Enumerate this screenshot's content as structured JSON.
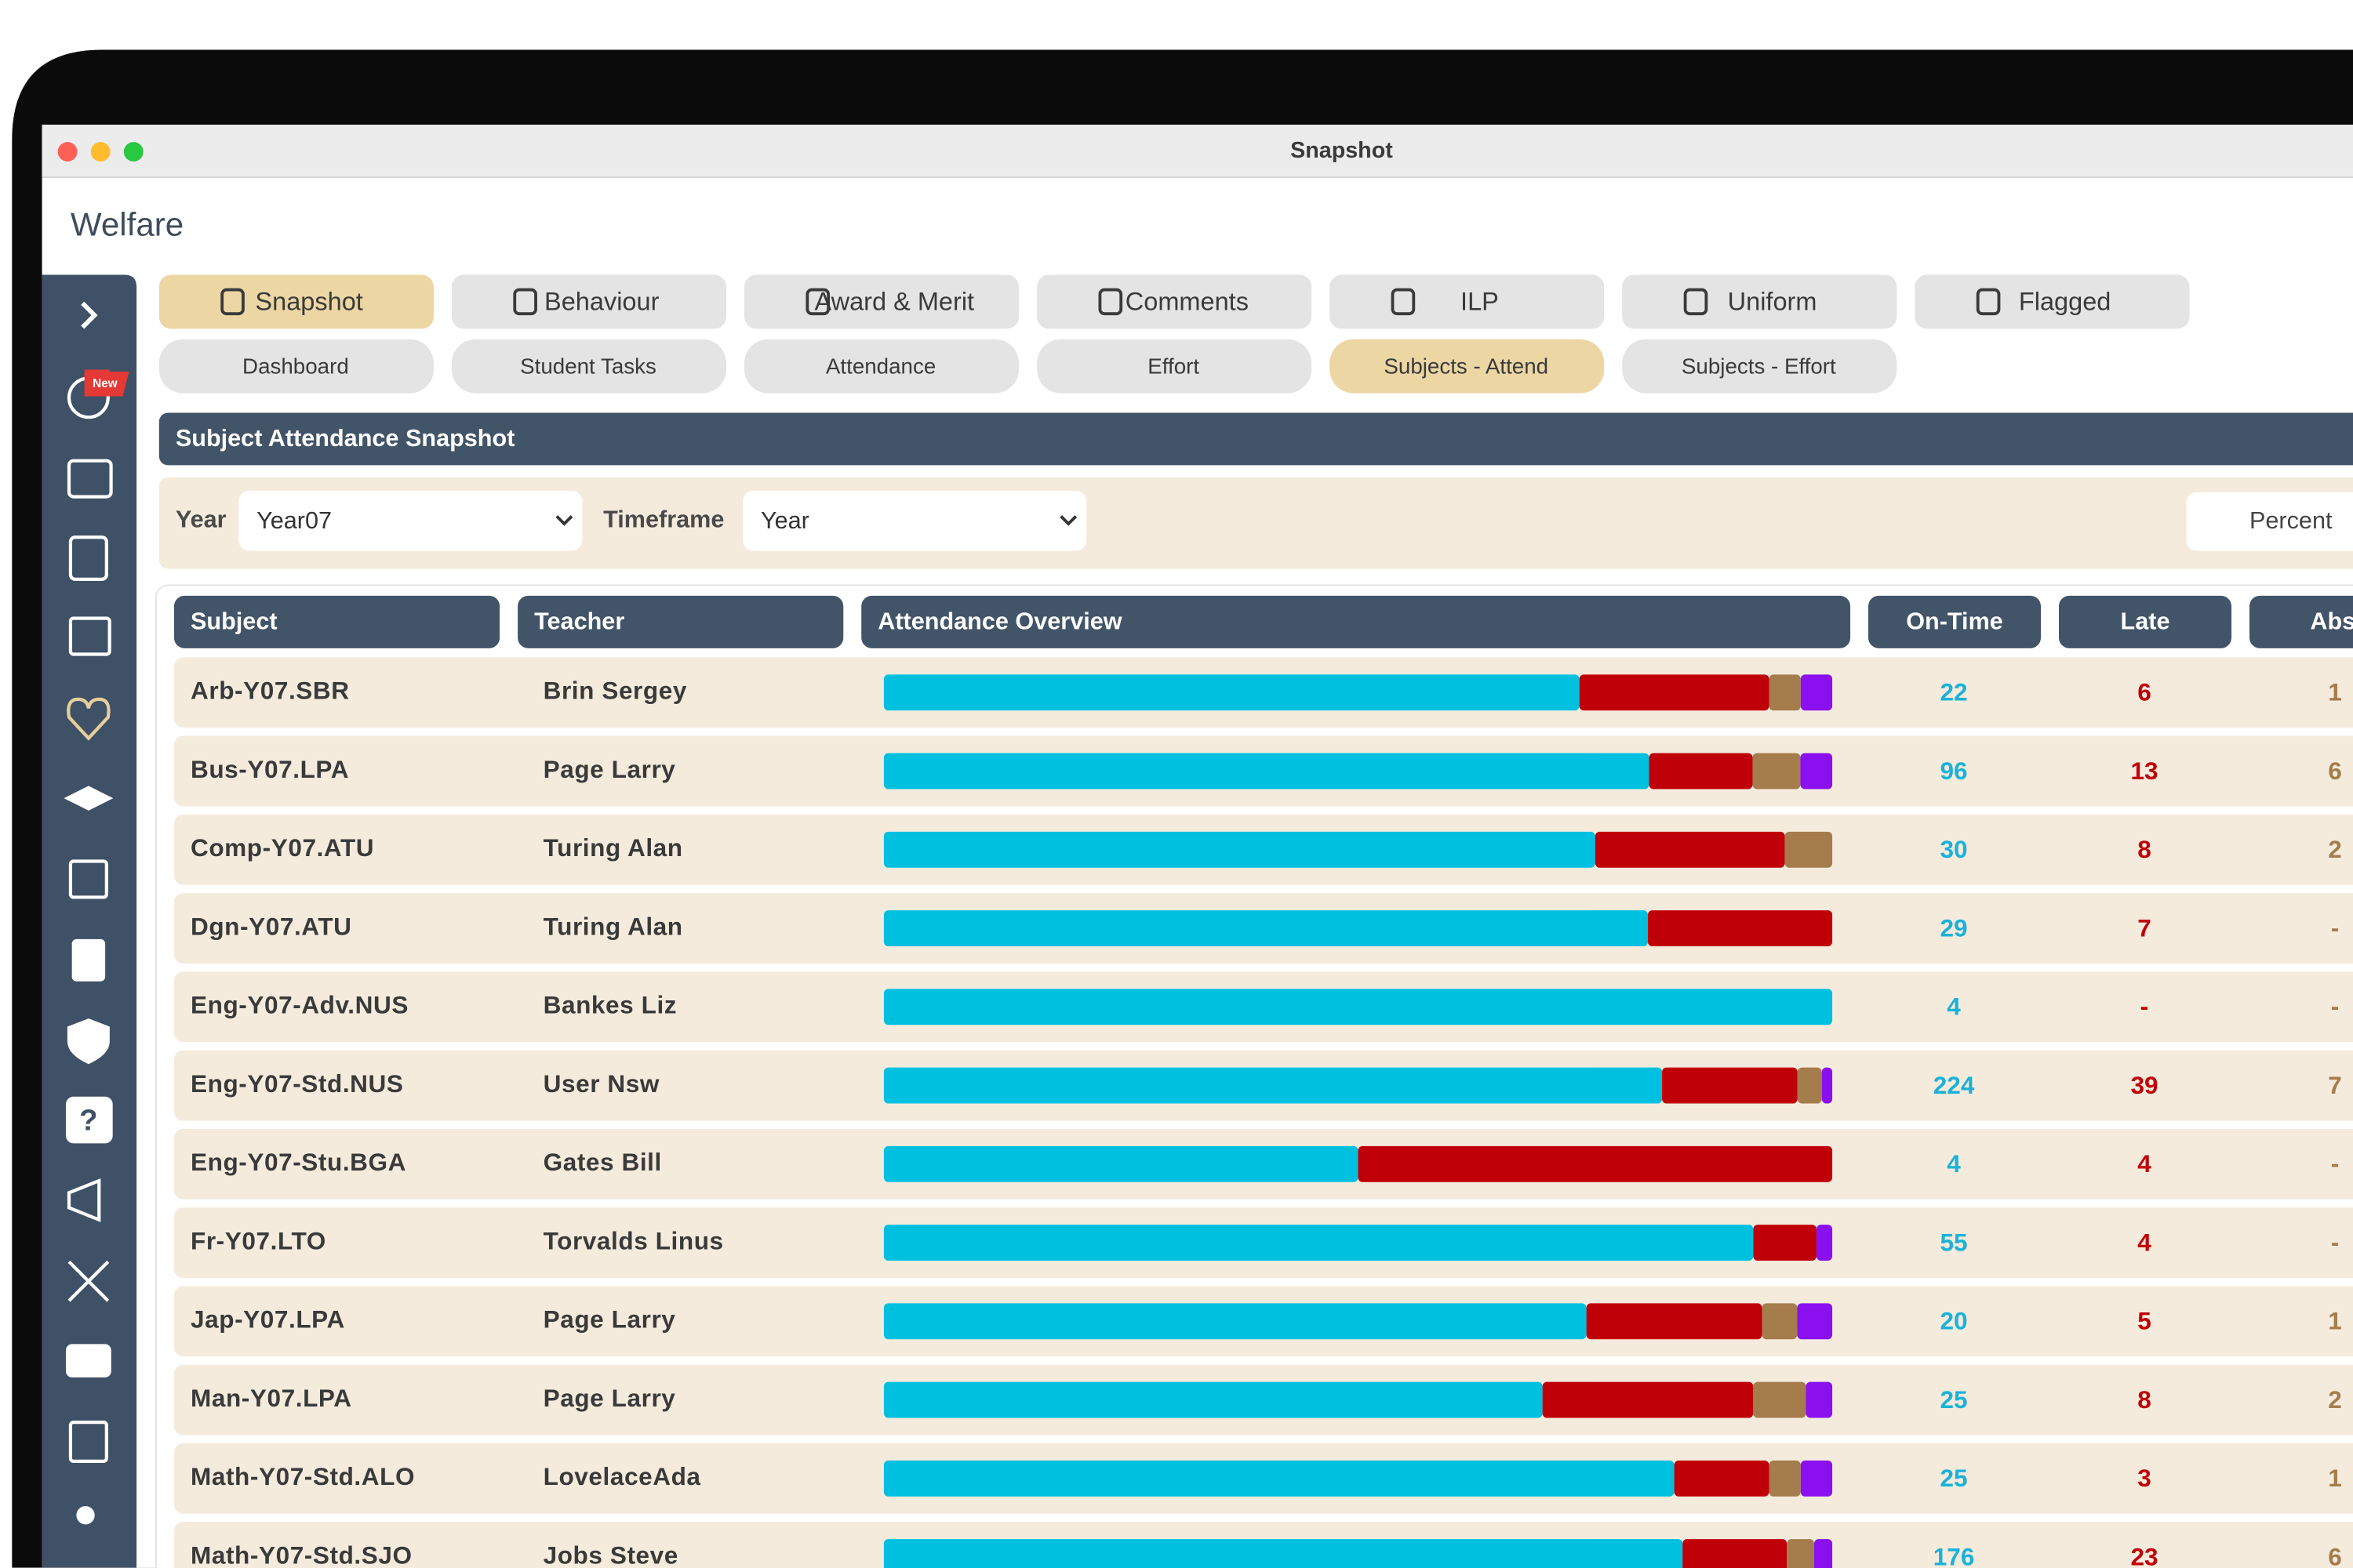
{
  "window": {
    "title": "Snapshot"
  },
  "header": {
    "title": "Welfare"
  },
  "sidebar": {
    "badge": "New"
  },
  "tabs": [
    "Snapshot",
    "Behaviour",
    "Award & Merit",
    "Comments",
    "ILP",
    "Uniform",
    "Flagged"
  ],
  "active_tab": 0,
  "subtabs": [
    "Dashboard",
    "Student Tasks",
    "Attendance",
    "Effort",
    "Subjects - Attend",
    "Subjects - Effort"
  ],
  "active_subtab": 4,
  "section": {
    "title": "Subject Attendance Snapshot"
  },
  "filters": {
    "year_label": "Year",
    "year": "Year07",
    "timeframe_label": "Timeframe",
    "timeframe": "Year",
    "mode": "Percent"
  },
  "table": {
    "columns": [
      "Subject",
      "Teacher",
      "Attendance Overview",
      "On-Time",
      "Late",
      "Abse"
    ],
    "colors": [
      "#00c0e0",
      "#c00008",
      "#a57c4c",
      "#8a10f0"
    ],
    "rows": [
      [
        "Arb-Y07.SBR",
        "Brin Sergey",
        22,
        6,
        1,
        1
      ],
      [
        "Bus-Y07.LPA",
        "Page Larry",
        96,
        13,
        6,
        4
      ],
      [
        "Comp-Y07.ATU",
        "Turing Alan",
        30,
        8,
        2,
        0
      ],
      [
        "Dgn-Y07.ATU",
        "Turing Alan",
        29,
        7,
        "-",
        0
      ],
      [
        "Eng-Y07-Adv.NUS",
        "Bankes Liz",
        4,
        "-",
        "-",
        0
      ],
      [
        "Eng-Y07-Std.NUS",
        "User Nsw",
        224,
        39,
        7,
        3
      ],
      [
        "Eng-Y07-Stu.BGA",
        "Gates Bill",
        4,
        4,
        "-",
        0
      ],
      [
        "Fr-Y07.LTO",
        "Torvalds Linus",
        55,
        4,
        "-",
        1
      ],
      [
        "Jap-Y07.LPA",
        "Page Larry",
        20,
        5,
        1,
        1
      ],
      [
        "Man-Y07.LPA",
        "Page Larry",
        25,
        8,
        2,
        1
      ],
      [
        "Math-Y07-Std.ALO",
        "LovelaceAda",
        25,
        3,
        1,
        1
      ],
      [
        "Math-Y07-Std.SJO",
        "Jobs Steve",
        176,
        23,
        6,
        4
      ]
    ]
  }
}
